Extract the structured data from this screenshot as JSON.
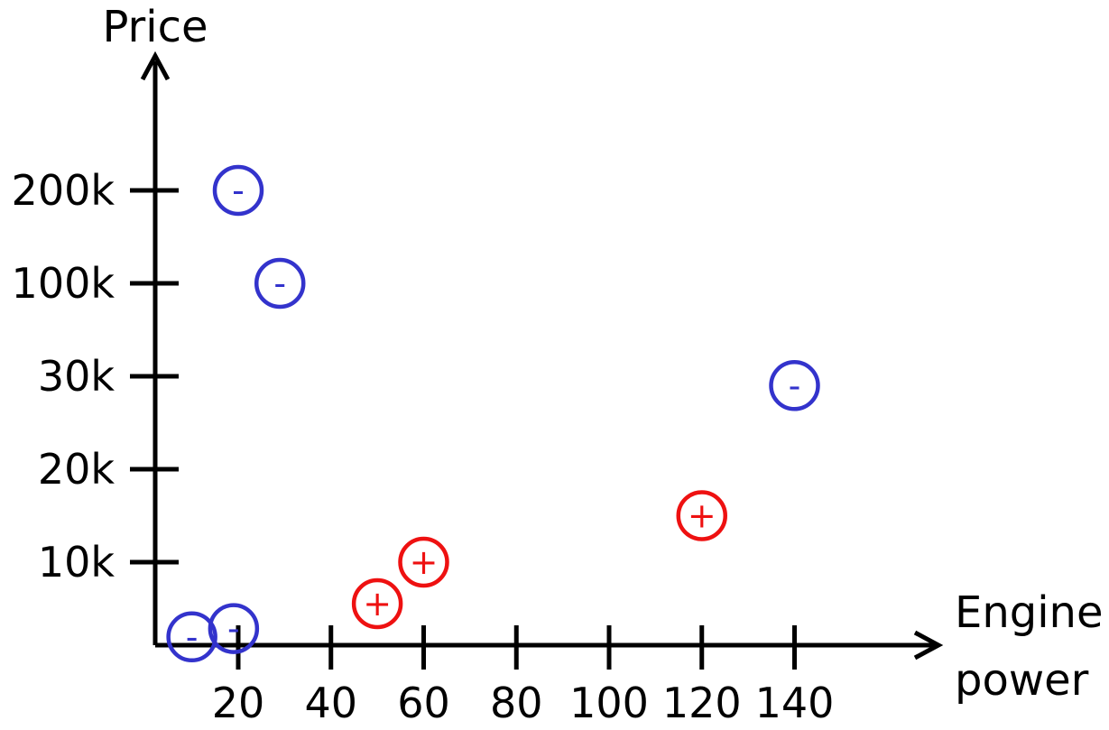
{
  "chart_data": {
    "type": "scatter",
    "title": "",
    "xlabel": [
      "Engine",
      "power"
    ],
    "ylabel": "Price",
    "x_ticks": [
      20,
      40,
      60,
      80,
      100,
      120,
      140
    ],
    "y_ticks": [
      "10k",
      "20k",
      "30k",
      "100k",
      "200k"
    ],
    "y_scale": "ordinal",
    "grid": false,
    "legend": "none",
    "series": [
      {
        "symbol": "-",
        "color": "#3333cc",
        "points": [
          {
            "x": 10,
            "y": "1k"
          },
          {
            "x": 19,
            "y": "2k"
          },
          {
            "x": 20,
            "y": "200k"
          },
          {
            "x": 29,
            "y": "100k"
          },
          {
            "x": 140,
            "y": "29k"
          }
        ]
      },
      {
        "symbol": "+",
        "color": "#ee1111",
        "points": [
          {
            "x": 50,
            "y": "5k"
          },
          {
            "x": 60,
            "y": "10k"
          },
          {
            "x": 120,
            "y": "15k"
          }
        ]
      }
    ]
  }
}
